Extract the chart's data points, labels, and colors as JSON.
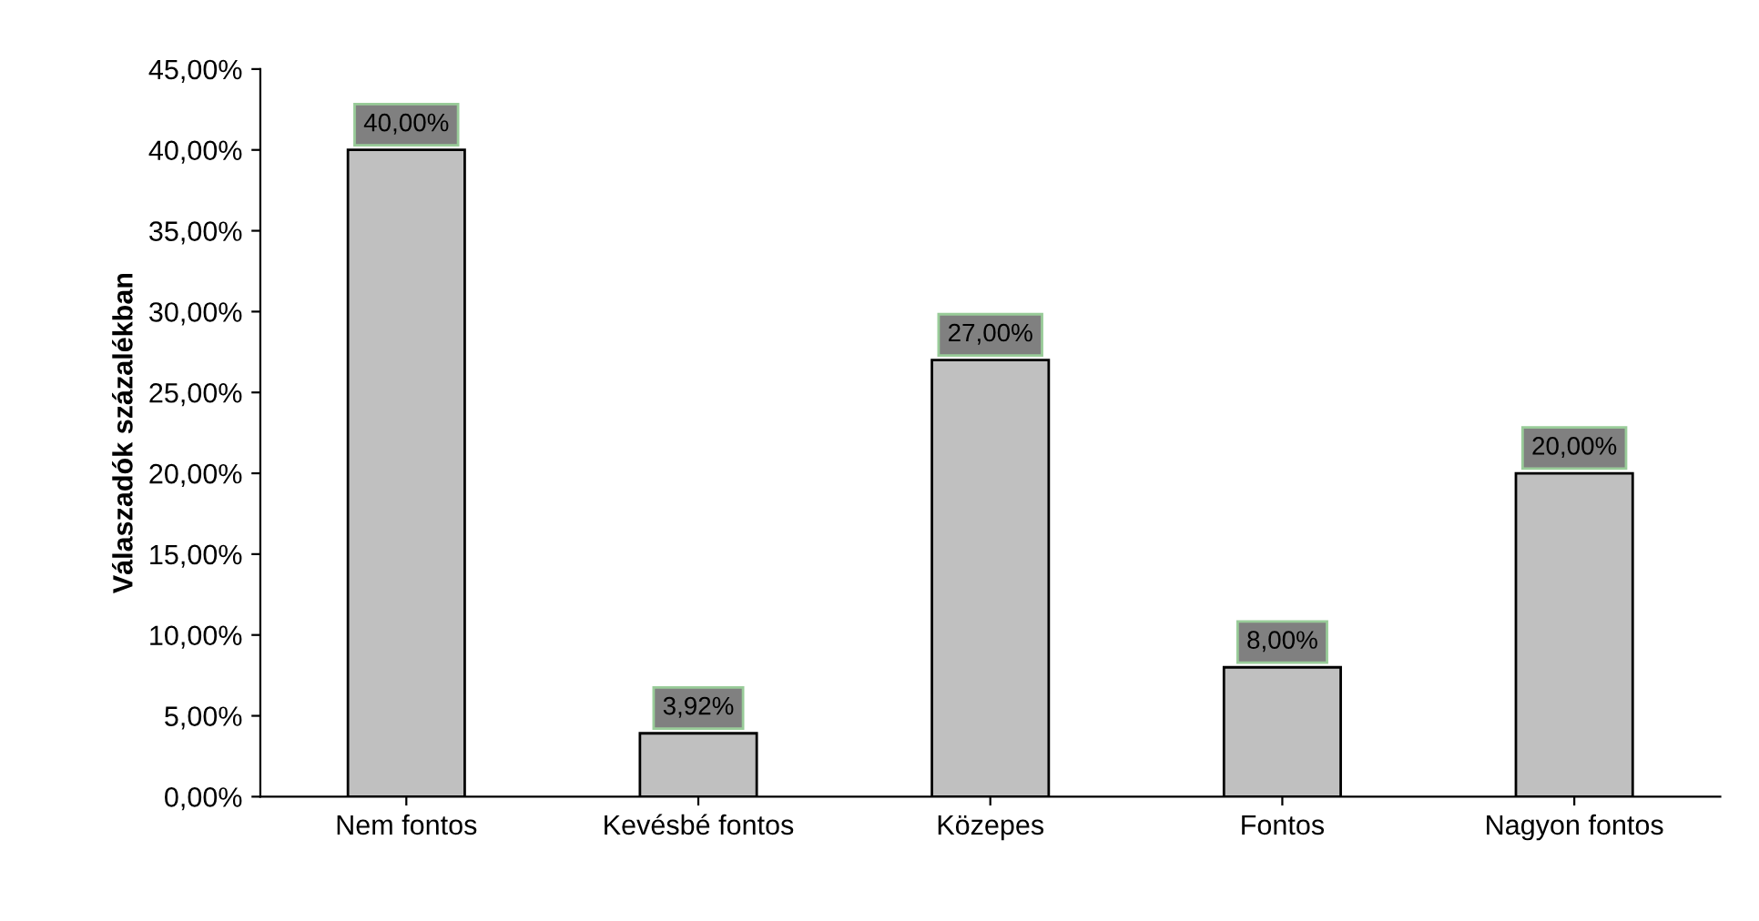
{
  "chart_data": {
    "type": "bar",
    "ylabel": "Válaszadók százalékban",
    "categories": [
      "Nem fontos",
      "Kevésbé fontos",
      "Közepes",
      "Fontos",
      "Nagyon fontos"
    ],
    "values": [
      40,
      3.92,
      27,
      8,
      20
    ],
    "value_labels": [
      "40,00%",
      "3,92%",
      "27,00%",
      "8,00%",
      "20,00%"
    ],
    "color": "#c0c0c0",
    "ylim": [
      0,
      45
    ],
    "yticks": [
      {
        "value": 0,
        "label": "0,00%"
      },
      {
        "value": 5,
        "label": "5,00%"
      },
      {
        "value": 10,
        "label": "10,00%"
      },
      {
        "value": 15,
        "label": "15,00%"
      },
      {
        "value": 20,
        "label": "20,00%"
      },
      {
        "value": 25,
        "label": "25,00%"
      },
      {
        "value": 30,
        "label": "30,00%"
      },
      {
        "value": 35,
        "label": "35,00%"
      },
      {
        "value": 40,
        "label": "40,00%"
      },
      {
        "value": 45,
        "label": "45,00%"
      }
    ],
    "grid": false,
    "legend": false
  }
}
